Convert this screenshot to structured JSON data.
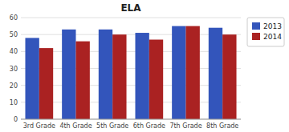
{
  "chart_data": {
    "type": "bar",
    "title": "ELA",
    "categories": [
      "3rd Grade",
      "4th Grade",
      "5th Grade",
      "6th Grade",
      "7th Grade",
      "8th Grade"
    ],
    "series": [
      {
        "name": "2013",
        "color": "#3355BB",
        "values": [
          48,
          53,
          53,
          51,
          55,
          54
        ]
      },
      {
        "name": "2014",
        "color": "#AA2222",
        "values": [
          42,
          46,
          50,
          47,
          55,
          50
        ]
      }
    ],
    "ylim": [
      0,
      60
    ],
    "yticks": [
      0,
      10,
      20,
      30,
      40,
      50,
      60
    ],
    "grid": true,
    "legend": "right"
  }
}
